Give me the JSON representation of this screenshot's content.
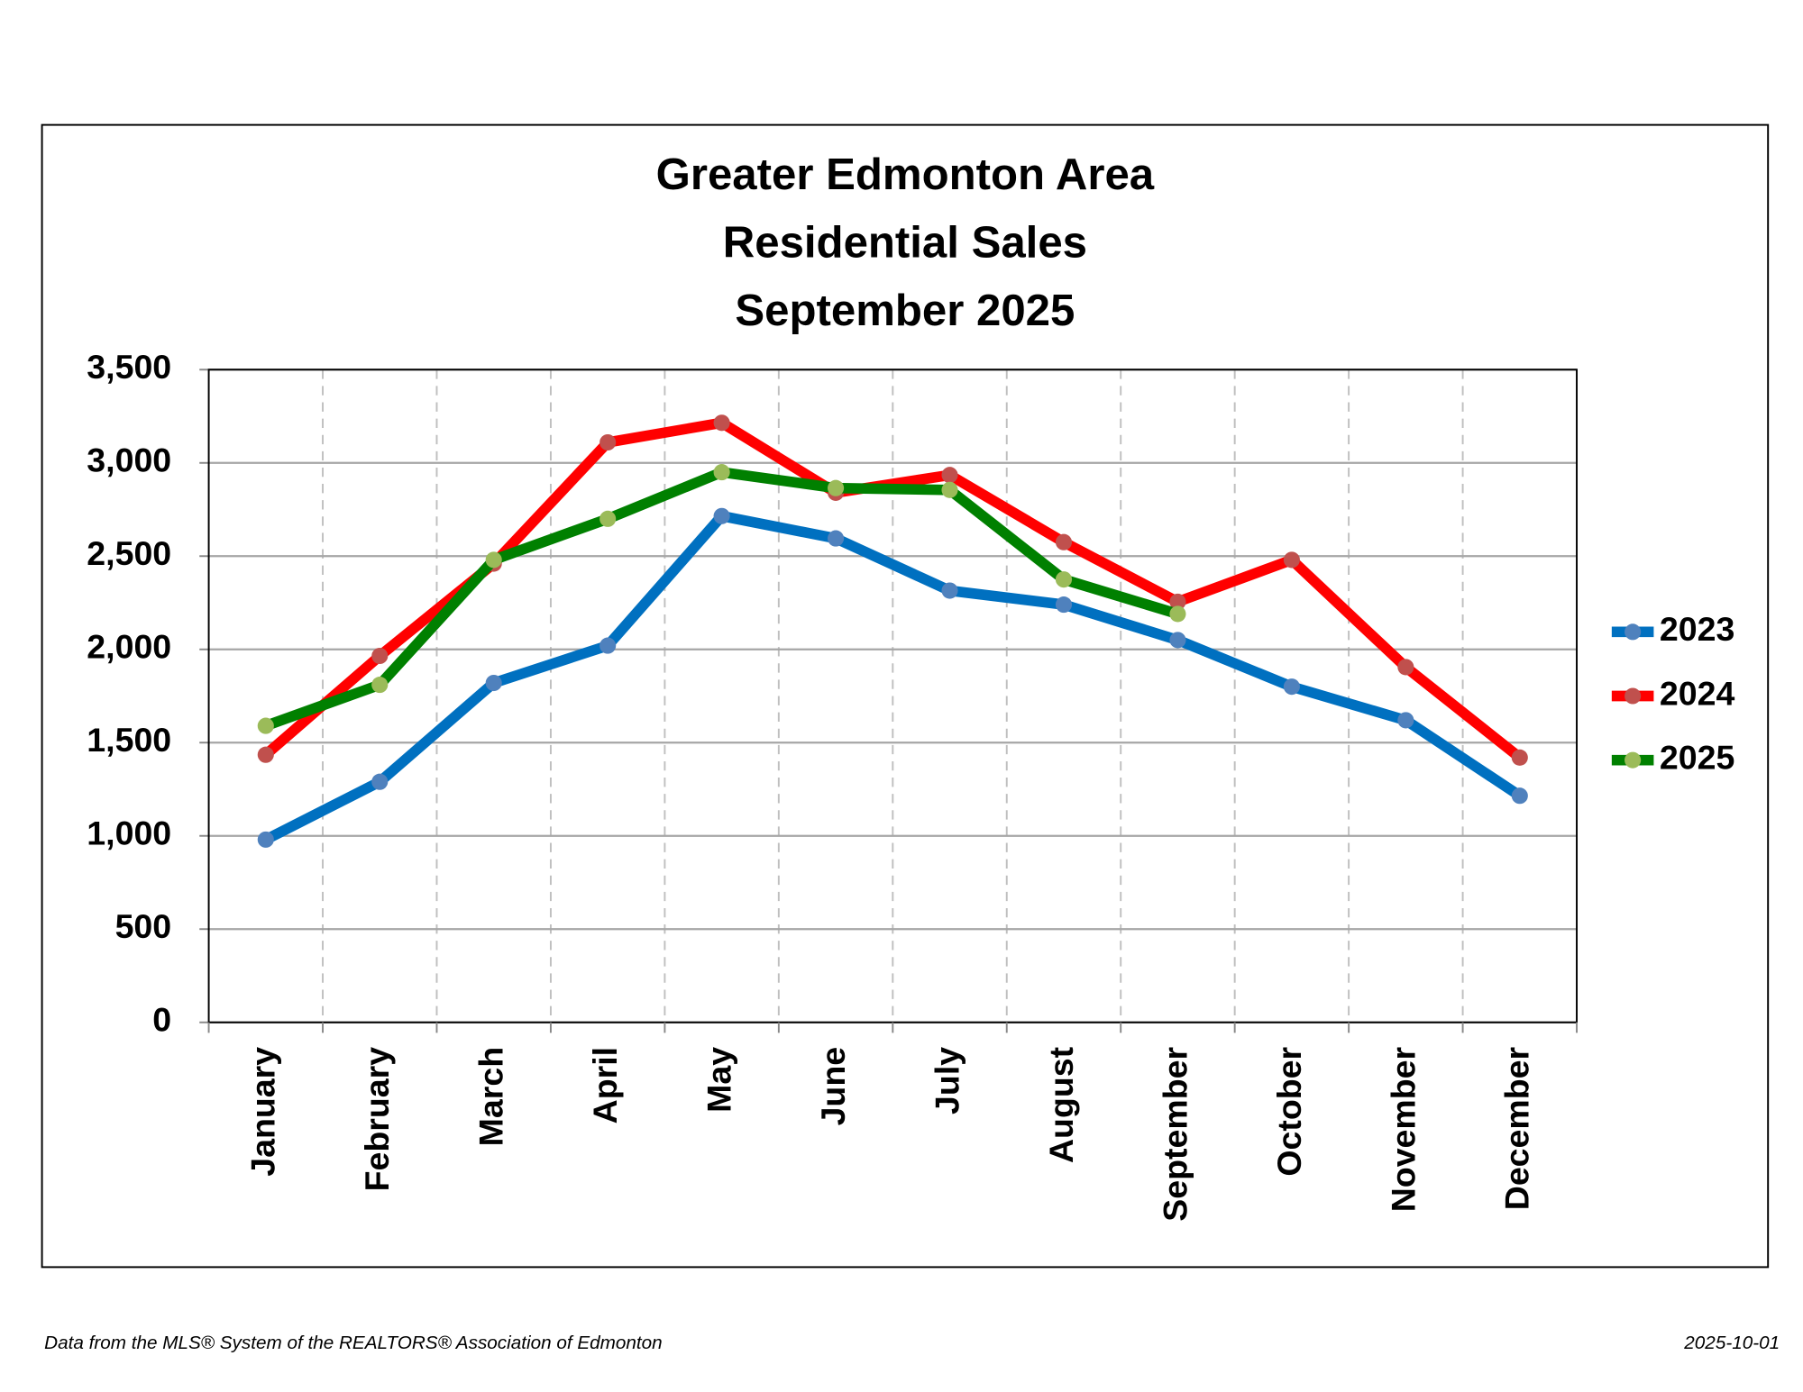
{
  "chart_data": {
    "type": "line",
    "title": [
      "Greater Edmonton Area",
      "Residential Sales",
      "September 2025"
    ],
    "categories": [
      "January",
      "February",
      "March",
      "April",
      "May",
      "June",
      "July",
      "August",
      "September",
      "October",
      "November",
      "December"
    ],
    "series": [
      {
        "name": "2023",
        "color": "#0070c0",
        "marker_color": "#4f81bd",
        "values": [
          980,
          1290,
          1820,
          2020,
          2715,
          2595,
          2315,
          2240,
          2050,
          1800,
          1620,
          1215
        ]
      },
      {
        "name": "2024",
        "color": "#ff0000",
        "marker_color": "#c0504d",
        "values": [
          1435,
          1965,
          2460,
          3110,
          3215,
          2840,
          2935,
          2575,
          2255,
          2480,
          1905,
          1420
        ]
      },
      {
        "name": "2025",
        "color": "#008000",
        "marker_color": "#9bbb59",
        "values": [
          1590,
          1810,
          2480,
          2700,
          2950,
          2865,
          2855,
          2375,
          2190,
          null,
          null,
          null
        ]
      }
    ],
    "ylim": [
      0,
      3500
    ],
    "yticks": [
      0,
      500,
      {
        "value": 1000,
        "label": "1,000"
      },
      {
        "value": 1500,
        "label": "1,500"
      },
      {
        "value": 2000,
        "label": "2,000"
      },
      {
        "value": 2500,
        "label": "2,500"
      },
      {
        "value": 3000,
        "label": "3,000"
      },
      {
        "value": 3500,
        "label": "3,500"
      }
    ],
    "grid": true,
    "xgrid": "dashed",
    "legend": "right"
  },
  "footer": {
    "source": "Data from the MLS® System of the REALTORS® Association of Edmonton",
    "date": "2025-10-01"
  }
}
